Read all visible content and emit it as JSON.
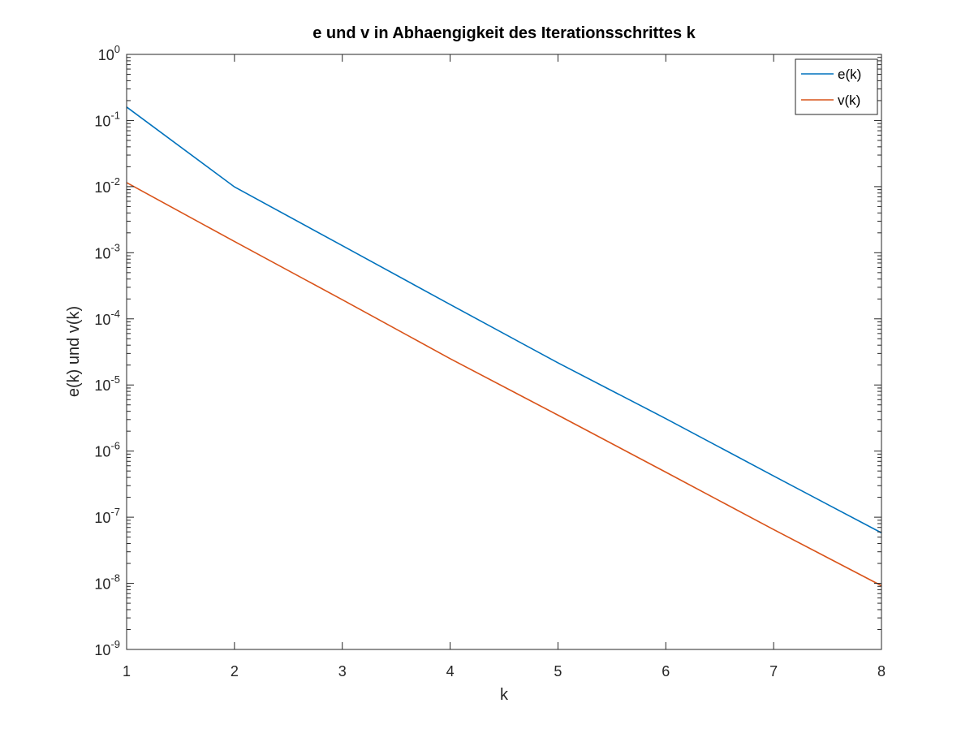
{
  "chart_data": {
    "type": "line",
    "title": "e und v in Abhaengigkeit des Iterationsschrittes k",
    "xlabel": "k",
    "ylabel": "e(k) und v(k)",
    "xlim": [
      1,
      8
    ],
    "ylim": [
      1e-09,
      1
    ],
    "yscale": "log",
    "x_ticks": [
      "1",
      "2",
      "3",
      "4",
      "5",
      "6",
      "7",
      "8"
    ],
    "y_ticks": [
      {
        "base": "10",
        "exp": "0"
      },
      {
        "base": "10",
        "exp": "-1"
      },
      {
        "base": "10",
        "exp": "-2"
      },
      {
        "base": "10",
        "exp": "-3"
      },
      {
        "base": "10",
        "exp": "-4"
      },
      {
        "base": "10",
        "exp": "-5"
      },
      {
        "base": "10",
        "exp": "-6"
      },
      {
        "base": "10",
        "exp": "-7"
      },
      {
        "base": "10",
        "exp": "-8"
      },
      {
        "base": "10",
        "exp": "-9"
      }
    ],
    "x": [
      1,
      2,
      3,
      4,
      5,
      6,
      7,
      8
    ],
    "series": [
      {
        "name": "e(k)",
        "color": "#0072bd",
        "values": [
          0.16,
          0.0099,
          0.00128,
          0.000165,
          2.16e-05,
          3.1e-06,
          4.2e-07,
          5.8e-08
        ]
      },
      {
        "name": "v(k)",
        "color": "#d95319",
        "values": [
          0.0115,
          0.00148,
          0.000195,
          2.5e-05,
          3.5e-06,
          4.8e-07,
          6.5e-08,
          9.2e-09
        ]
      }
    ],
    "grid": false,
    "legend_position": "top-right"
  }
}
